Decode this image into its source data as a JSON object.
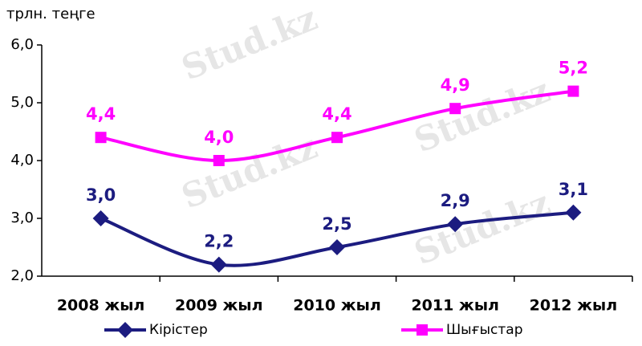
{
  "chart_data": {
    "type": "line",
    "y_axis_label": "трлн. теңге",
    "watermark": "Stud.kz",
    "categories": [
      "2008 жыл",
      "2009 жыл",
      "2010 жыл",
      "2011 жыл",
      "2012 жыл"
    ],
    "series": [
      {
        "name": "Кірістер",
        "color": "#1c1c80",
        "marker": "diamond",
        "values": [
          3.0,
          2.2,
          2.5,
          2.9,
          3.1
        ],
        "value_labels": [
          "3,0",
          "2,2",
          "2,5",
          "2,9",
          "3,1"
        ]
      },
      {
        "name": "Шығыстар",
        "color": "#ff00ff",
        "marker": "square",
        "values": [
          4.4,
          4.0,
          4.4,
          4.9,
          5.2
        ],
        "value_labels": [
          "4,4",
          "4,0",
          "4,4",
          "4,9",
          "5,2"
        ]
      }
    ],
    "ylim": [
      2.0,
      6.0
    ],
    "yticks": [
      {
        "value": 2.0,
        "label": "2,0"
      },
      {
        "value": 3.0,
        "label": "3,0"
      },
      {
        "value": 4.0,
        "label": "4,0"
      },
      {
        "value": 5.0,
        "label": "5,0"
      },
      {
        "value": 6.0,
        "label": "6,0"
      }
    ],
    "legend": "bottom"
  }
}
